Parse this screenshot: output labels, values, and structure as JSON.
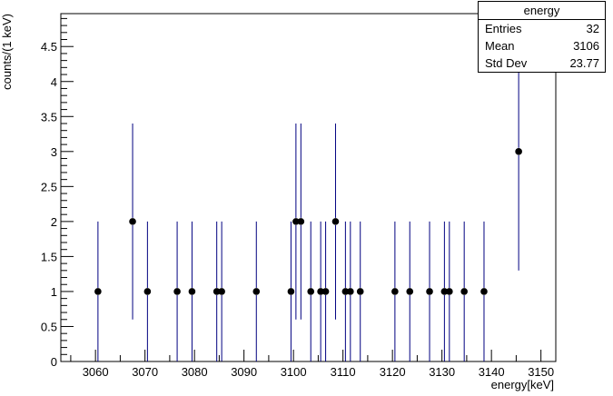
{
  "chart_data": {
    "type": "scatter",
    "style": "error-bars",
    "xlabel": "energy[keV]",
    "ylabel": "counts/(1 keV)",
    "xlim": [
      3053,
      3153
    ],
    "ylim": [
      0,
      5
    ],
    "x_ticks": [
      3060,
      3070,
      3080,
      3090,
      3100,
      3110,
      3120,
      3130,
      3140,
      3150
    ],
    "y_ticks": [
      0,
      0.5,
      1,
      1.5,
      2,
      2.5,
      3,
      3.5,
      4,
      4.5
    ],
    "x_tick_labels": [
      "3060",
      "3070",
      "3080",
      "3090",
      "3100",
      "3110",
      "3120",
      "3130",
      "3140",
      "3150"
    ],
    "y_tick_labels": [
      "0",
      "0.5",
      "1",
      "1.5",
      "2",
      "2.5",
      "3",
      "3.5",
      "4",
      "4.5"
    ],
    "grid": false,
    "marker_color": "#000000",
    "errorbar_color": "#000080",
    "points": [
      {
        "x": 3060.5,
        "y": 1,
        "lo": 0,
        "hi": 2
      },
      {
        "x": 3067.5,
        "y": 2,
        "lo": 0.6,
        "hi": 3.4
      },
      {
        "x": 3070.5,
        "y": 1,
        "lo": 0,
        "hi": 2
      },
      {
        "x": 3076.5,
        "y": 1,
        "lo": 0,
        "hi": 2
      },
      {
        "x": 3079.5,
        "y": 1,
        "lo": 0,
        "hi": 2
      },
      {
        "x": 3084.5,
        "y": 1,
        "lo": 0,
        "hi": 2
      },
      {
        "x": 3085.5,
        "y": 1,
        "lo": 0,
        "hi": 2
      },
      {
        "x": 3092.5,
        "y": 1,
        "lo": 0,
        "hi": 2
      },
      {
        "x": 3099.5,
        "y": 1,
        "lo": 0,
        "hi": 2
      },
      {
        "x": 3100.5,
        "y": 2,
        "lo": 0.6,
        "hi": 3.4
      },
      {
        "x": 3101.5,
        "y": 2,
        "lo": 0.6,
        "hi": 3.4
      },
      {
        "x": 3103.5,
        "y": 1,
        "lo": 0,
        "hi": 2
      },
      {
        "x": 3105.5,
        "y": 1,
        "lo": 0,
        "hi": 2
      },
      {
        "x": 3106.5,
        "y": 1,
        "lo": 0,
        "hi": 2
      },
      {
        "x": 3108.5,
        "y": 2,
        "lo": 0.6,
        "hi": 3.4
      },
      {
        "x": 3110.5,
        "y": 1,
        "lo": 0,
        "hi": 2
      },
      {
        "x": 3111.5,
        "y": 1,
        "lo": 0,
        "hi": 2
      },
      {
        "x": 3113.5,
        "y": 1,
        "lo": 0,
        "hi": 2
      },
      {
        "x": 3120.5,
        "y": 1,
        "lo": 0,
        "hi": 2
      },
      {
        "x": 3123.5,
        "y": 1,
        "lo": 0,
        "hi": 2
      },
      {
        "x": 3127.5,
        "y": 1,
        "lo": 0,
        "hi": 2
      },
      {
        "x": 3130.5,
        "y": 1,
        "lo": 0,
        "hi": 2
      },
      {
        "x": 3131.5,
        "y": 1,
        "lo": 0,
        "hi": 2
      },
      {
        "x": 3134.5,
        "y": 1,
        "lo": 0,
        "hi": 2
      },
      {
        "x": 3138.5,
        "y": 1,
        "lo": 0,
        "hi": 2
      },
      {
        "x": 3145.5,
        "y": 3,
        "lo": 1.3,
        "hi": 4.7
      }
    ]
  },
  "stats_box": {
    "title": "energy",
    "rows": [
      {
        "label": "Entries",
        "value": "32"
      },
      {
        "label": "Mean",
        "value": "3106"
      },
      {
        "label": "Std Dev",
        "value": "23.77"
      }
    ]
  }
}
